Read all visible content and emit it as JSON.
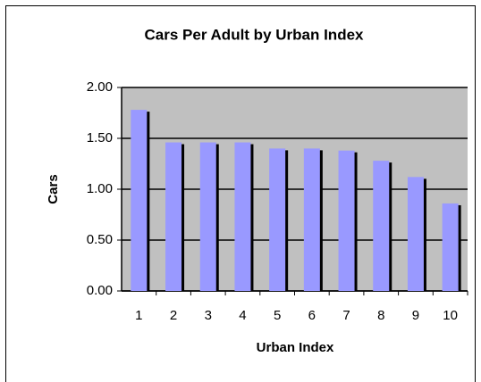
{
  "chart_data": {
    "type": "bar",
    "title": "Cars Per Adult by Urban Index",
    "x_label": "Urban Index",
    "y_label": "Cars",
    "categories": [
      "1",
      "2",
      "3",
      "4",
      "5",
      "6",
      "7",
      "8",
      "9",
      "10"
    ],
    "values": [
      1.78,
      1.46,
      1.46,
      1.46,
      1.4,
      1.4,
      1.38,
      1.28,
      1.12,
      0.86
    ],
    "color": "#9999ff",
    "ylim": [
      0,
      2
    ],
    "yticks": [
      {
        "value": 0,
        "label": "0.00"
      },
      {
        "value": 0.5,
        "label": "0.50"
      },
      {
        "value": 1,
        "label": "1.00"
      },
      {
        "value": 1.5,
        "label": "1.50"
      },
      {
        "value": 2,
        "label": "2.00"
      }
    ],
    "grid": true
  }
}
